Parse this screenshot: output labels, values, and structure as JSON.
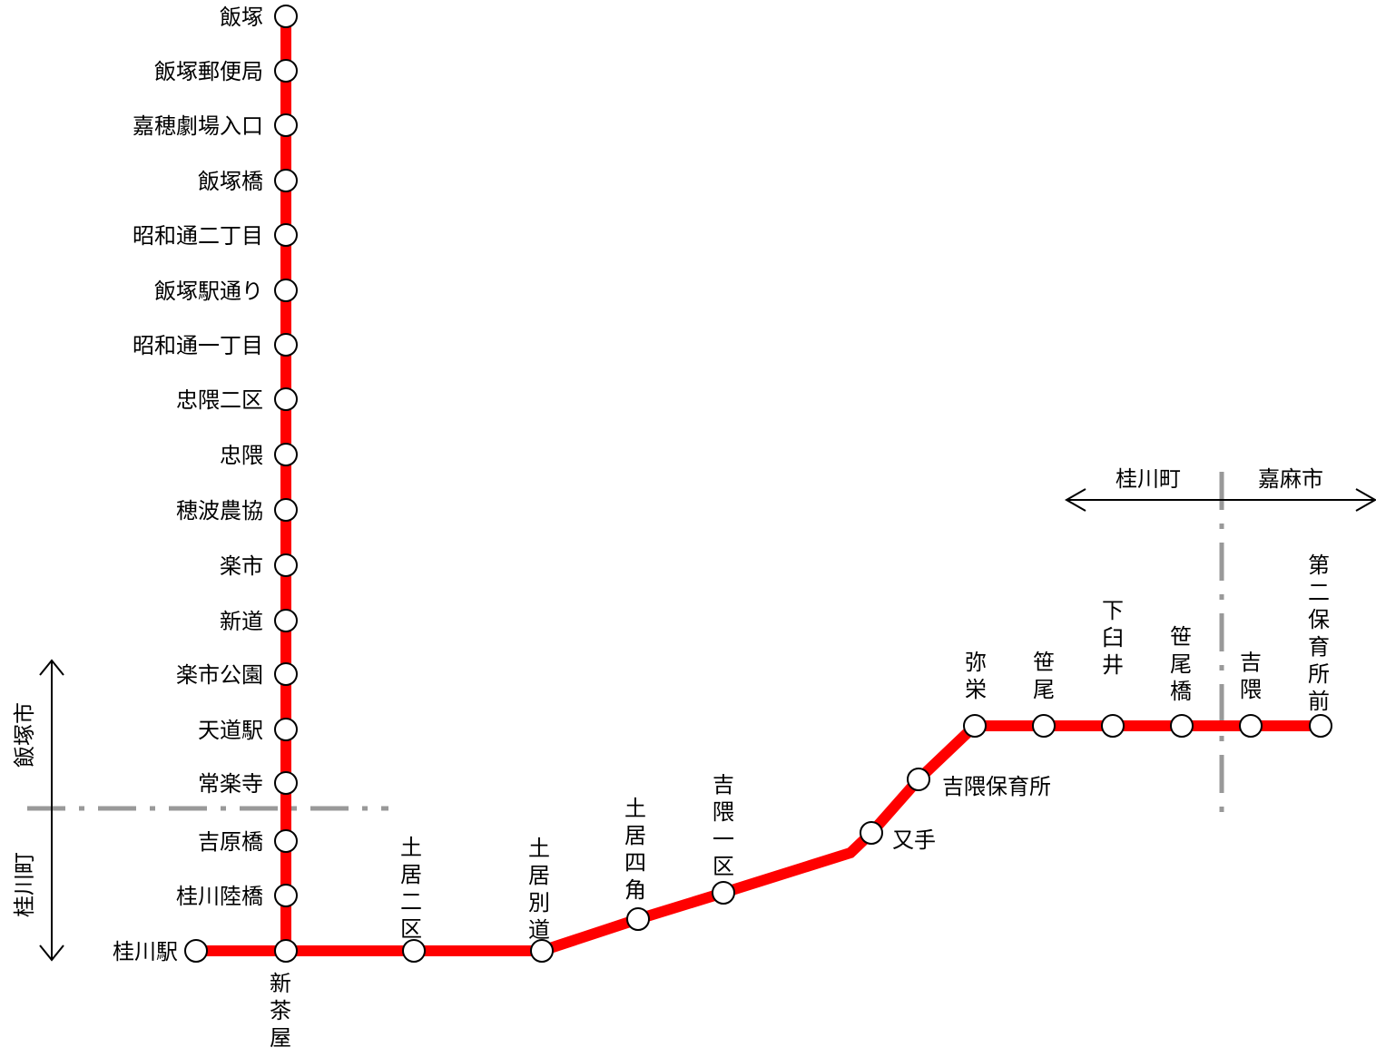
{
  "colors": {
    "route": "#ff0000",
    "boundary": "#999999",
    "station_fill": "#ffffff",
    "station_stroke": "#000000",
    "text": "#000000"
  },
  "stations": [
    {
      "id": "iizuka",
      "name": "飯塚"
    },
    {
      "id": "iizuka-yubinkyoku",
      "name": "飯塚郵便局"
    },
    {
      "id": "kaho-gekijo-iriguchi",
      "name": "嘉穂劇場入口"
    },
    {
      "id": "iizukabashi",
      "name": "飯塚橋"
    },
    {
      "id": "showa-dori-2",
      "name": "昭和通二丁目"
    },
    {
      "id": "iizuka-eki-dori",
      "name": "飯塚駅通り"
    },
    {
      "id": "showa-dori-1",
      "name": "昭和通一丁目"
    },
    {
      "id": "tadakuma-niku",
      "name": "忠隈二区"
    },
    {
      "id": "tadakuma",
      "name": "忠隈"
    },
    {
      "id": "honami-nokyo",
      "name": "穂波農協"
    },
    {
      "id": "raku-ichi",
      "name": "楽市"
    },
    {
      "id": "shindo",
      "name": "新道"
    },
    {
      "id": "rakuichi-koen",
      "name": "楽市公園"
    },
    {
      "id": "tendo-eki",
      "name": "天道駅"
    },
    {
      "id": "jorakuji",
      "name": "常楽寺"
    },
    {
      "id": "yoshiwarabashi",
      "name": "吉原橋"
    },
    {
      "id": "keisen-rikkyo",
      "name": "桂川陸橋"
    },
    {
      "id": "keisen-eki",
      "name": "桂川駅"
    },
    {
      "id": "shinchaya",
      "name": "新茶屋"
    },
    {
      "id": "doi-niku",
      "name": "土居二区"
    },
    {
      "id": "doi-betsudo",
      "name": "土居別道"
    },
    {
      "id": "doi-yotsukado",
      "name": "土居四角"
    },
    {
      "id": "yoshikuma-ikku",
      "name": "吉隈一区"
    },
    {
      "id": "matate",
      "name": "又手"
    },
    {
      "id": "yoshikuma-hoikusho",
      "name": "吉隈保育所"
    },
    {
      "id": "iyasaka",
      "name": "弥栄"
    },
    {
      "id": "sasao",
      "name": "笹尾"
    },
    {
      "id": "shimo-usui",
      "name": "下臼井"
    },
    {
      "id": "sasaobashi",
      "name": "笹尾橋"
    },
    {
      "id": "yoshikuma",
      "name": "吉隈"
    },
    {
      "id": "daini-hoikusho-mae",
      "name": "第二保育所前"
    }
  ],
  "boundaries": {
    "west": {
      "north": "飯塚市",
      "south": "桂川町"
    },
    "east": {
      "west": "桂川町",
      "east": "嘉麻市"
    }
  }
}
